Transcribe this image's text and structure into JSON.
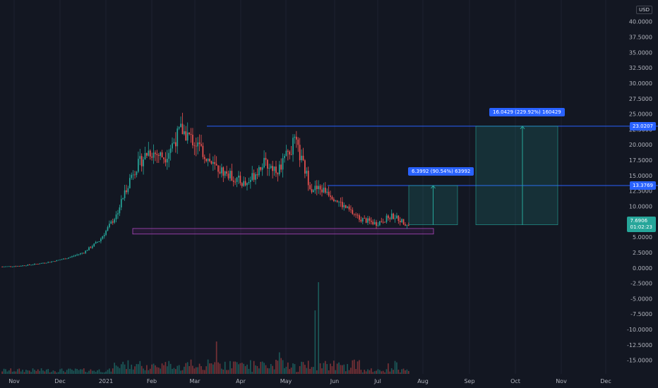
{
  "currency": "USD",
  "chart_data": {
    "type": "candlestick",
    "x": {
      "labels": [
        "Nov",
        "Dec",
        "2021",
        "Feb",
        "Mar",
        "Apr",
        "May",
        "Jun",
        "Jul",
        "Aug",
        "Sep",
        "Oct",
        "Nov",
        "Dec"
      ]
    },
    "y_ticks": [
      "40.0000",
      "37.5000",
      "35.0000",
      "32.5000",
      "30.0000",
      "27.5000",
      "25.0000",
      "22.5000",
      "20.0000",
      "17.5000",
      "15.0000",
      "12.5000",
      "10.0000",
      "7.5000",
      "5.0000",
      "2.5000",
      "0.0000",
      "-2.5000",
      "-5.0000",
      "-7.5000",
      "-10.0000",
      "-12.5000",
      "-15.0000"
    ],
    "ylim": [
      -15.5,
      41
    ],
    "price_series": [
      0.2,
      0.3,
      0.6,
      1.0,
      1.6,
      2.5,
      4.5,
      8.5,
      15.5,
      19.0,
      18.0,
      22.5,
      20.0,
      16.5,
      15.0,
      13.5,
      17.0,
      16.0,
      20.5,
      13.0,
      12.5,
      10.0,
      8.0,
      7.2,
      8.5,
      7.0
    ],
    "current_price": "7.6906",
    "countdown": "01:02:23",
    "support_zone": [
      5.5,
      6.4
    ],
    "levels": [
      {
        "value": "23.0207"
      },
      {
        "value": "13.3769"
      }
    ],
    "targets": [
      {
        "label": "6.3992 (90.54%) 63992",
        "from": 7.0,
        "to": 13.3769
      },
      {
        "label": "16.0429 (229.92%) 160429",
        "from": 7.0,
        "to": 23.0207
      }
    ]
  }
}
